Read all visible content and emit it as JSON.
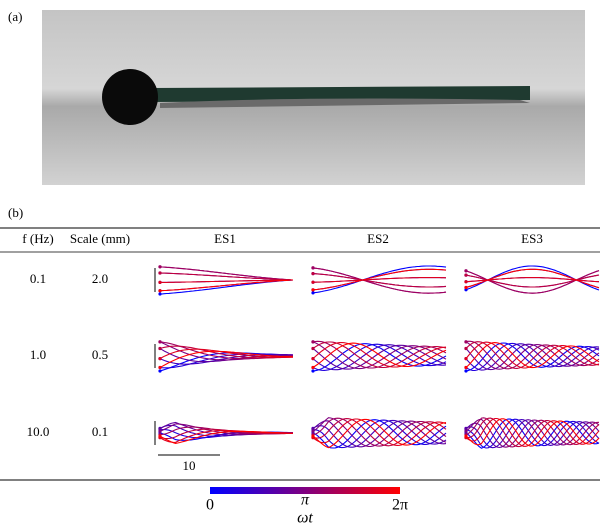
{
  "figure": {
    "panel_a_label": "(a)",
    "panel_b_label": "(b)"
  },
  "table": {
    "headers": [
      "f (Hz)",
      "Scale (mm)",
      "ES1",
      "ES2",
      "ES3"
    ],
    "rows": [
      [
        "0.1",
        "2.0"
      ],
      [
        "1.0",
        "0.5"
      ],
      [
        "10.0",
        "0.1"
      ]
    ]
  },
  "scale_bar_label": "10",
  "colorbar": {
    "labels": [
      "0",
      "π",
      "2π"
    ],
    "title": "ωt"
  }
}
